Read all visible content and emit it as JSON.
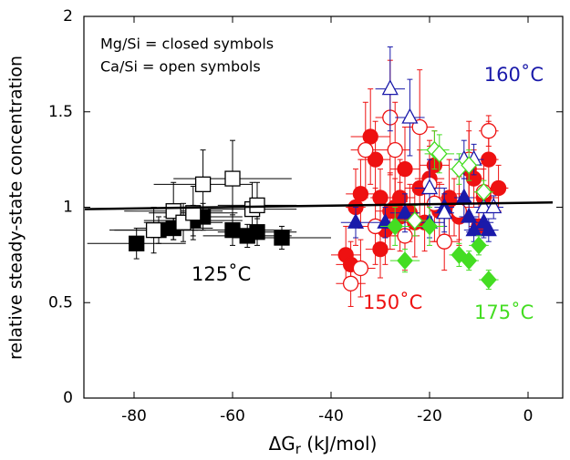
{
  "chart_data": {
    "type": "scatter",
    "ylabel": "relative steady-state concentration",
    "xlabel": {
      "main": "ΔG",
      "sub": "r",
      "rest": " (kJ/mol)"
    },
    "xlim": [
      -90,
      5
    ],
    "ylim": [
      0,
      2
    ],
    "xticks": [
      -80,
      -60,
      -40,
      -20,
      0
    ],
    "yticks": [
      0,
      0.5,
      1,
      1.5,
      2
    ],
    "fit_line": {
      "color": "#000000",
      "x": [
        -90,
        5
      ],
      "y": [
        0.99,
        1.025
      ]
    },
    "annotations": [
      {
        "text": "Mg/Si = closed symbols",
        "color": "#000000"
      },
      {
        "text": "Ca/Si = open symbols",
        "color": "#000000"
      },
      {
        "text": "160˚C",
        "color": "#1a1aaa"
      },
      {
        "text": "125˚C",
        "color": "#000000"
      },
      {
        "text": "150˚C",
        "color": "#ee1111"
      },
      {
        "text": "175˚C",
        "color": "#44dd22"
      }
    ],
    "series": [
      {
        "color": "#000000",
        "marker": "square",
        "filled": true,
        "x": [
          -79.5,
          -75,
          -72,
          -68,
          -66,
          -60,
          -57,
          -55,
          -50
        ],
        "values": [
          0.81,
          0.88,
          0.89,
          0.93,
          0.95,
          0.88,
          0.85,
          0.87,
          0.84
        ],
        "xerr": [
          10,
          9,
          8,
          10,
          8,
          12,
          9,
          8,
          10
        ],
        "yerr": [
          0.08,
          0.07,
          0.06,
          0.08,
          0.07,
          0.08,
          0.06,
          0.07,
          0.06
        ]
      },
      {
        "color": "#000000",
        "marker": "square",
        "filled": false,
        "x": [
          -76,
          -72,
          -70,
          -68,
          -66,
          -60,
          -56,
          -55
        ],
        "values": [
          0.88,
          0.98,
          0.92,
          0.97,
          1.12,
          1.15,
          0.99,
          1.01
        ],
        "xerr": [
          9,
          10,
          8,
          9,
          10,
          12,
          9,
          8
        ],
        "yerr": [
          0.12,
          0.15,
          0.1,
          0.14,
          0.18,
          0.2,
          0.14,
          0.12
        ]
      },
      {
        "color": "#ee1111",
        "marker": "circle",
        "filled": true,
        "x": [
          -37,
          -36,
          -35,
          -34,
          -32,
          -31,
          -30,
          -29,
          -28,
          -27,
          -26,
          -25,
          -24,
          -23,
          -22,
          -21,
          -20,
          -19,
          -18,
          -16,
          -15,
          -14,
          -12,
          -11,
          -10,
          -9,
          -8,
          -6,
          -30,
          -26
        ],
        "values": [
          0.75,
          0.7,
          1.0,
          1.07,
          1.37,
          1.25,
          1.05,
          0.88,
          0.98,
          1.0,
          1.05,
          1.2,
          0.97,
          0.92,
          1.1,
          0.92,
          1.15,
          1.22,
          0.98,
          1.05,
          1.0,
          0.95,
          1.2,
          1.15,
          0.9,
          1.05,
          1.25,
          1.1,
          0.78,
          0.95
        ],
        "xerr": [
          3,
          3,
          2,
          3,
          4,
          3,
          2,
          3,
          3,
          2,
          3,
          3,
          2,
          3,
          3,
          2,
          3,
          3,
          2,
          3,
          3,
          2,
          3,
          2,
          2,
          3,
          2,
          2,
          3,
          3
        ],
        "yerr": [
          0.15,
          0.12,
          0.2,
          0.18,
          0.25,
          0.2,
          0.15,
          0.18,
          0.2,
          0.15,
          0.2,
          0.22,
          0.15,
          0.18,
          0.2,
          0.15,
          0.2,
          0.18,
          0.15,
          0.2,
          0.15,
          0.12,
          0.2,
          0.15,
          0.12,
          0.15,
          0.2,
          0.12,
          0.15,
          0.18
        ]
      },
      {
        "color": "#ee1111",
        "marker": "circle",
        "filled": false,
        "x": [
          -36,
          -34,
          -33,
          -31,
          -28,
          -27,
          -25,
          -22,
          -20,
          -17,
          -14,
          -12,
          -9,
          -8,
          -19
        ],
        "values": [
          0.6,
          0.68,
          1.3,
          0.9,
          1.47,
          1.3,
          0.85,
          1.42,
          1.12,
          0.82,
          0.98,
          1.25,
          1.08,
          1.4,
          1.02
        ],
        "xerr": [
          3,
          3,
          3,
          3,
          3,
          3,
          3,
          3,
          3,
          3,
          2,
          2,
          2,
          2,
          3
        ],
        "yerr": [
          0.12,
          0.15,
          0.25,
          0.2,
          0.3,
          0.25,
          0.18,
          0.3,
          0.2,
          0.15,
          0.18,
          0.2,
          0.15,
          0.08,
          0.2
        ]
      },
      {
        "color": "#1a1aaa",
        "marker": "triangle",
        "filled": true,
        "x": [
          -35,
          -29,
          -25,
          -20,
          -17,
          -13,
          -12,
          -11,
          -9,
          -8
        ],
        "values": [
          0.92,
          0.92,
          0.97,
          0.92,
          1.0,
          1.05,
          0.95,
          0.88,
          0.92,
          0.88
        ],
        "xerr": [
          3,
          3,
          3,
          3,
          2,
          2,
          2,
          2,
          2,
          2
        ],
        "yerr": [
          0.08,
          0.08,
          0.1,
          0.08,
          0.1,
          0.1,
          0.08,
          0.06,
          0.08,
          0.06
        ]
      },
      {
        "color": "#1a1aaa",
        "marker": "triangle",
        "filled": false,
        "x": [
          -28,
          -24,
          -20,
          -17,
          -13,
          -11,
          -9,
          -7
        ],
        "values": [
          1.62,
          1.47,
          1.1,
          0.97,
          1.25,
          1.25,
          1.0,
          1.0
        ],
        "xerr": [
          3,
          3,
          3,
          2,
          2,
          2,
          2,
          2
        ],
        "yerr": [
          0.22,
          0.2,
          0.15,
          0.1,
          0.1,
          0.08,
          0.08,
          0.06
        ]
      },
      {
        "color": "#44dd22",
        "marker": "diamond",
        "filled": true,
        "x": [
          -27,
          -20,
          -25,
          -14,
          -12,
          -10,
          -8
        ],
        "values": [
          0.9,
          0.9,
          0.72,
          0.75,
          0.72,
          0.8,
          0.62
        ],
        "xerr": [
          3,
          3,
          3,
          2,
          2,
          2,
          2
        ],
        "yerr": [
          0.1,
          0.1,
          0.06,
          0.06,
          0.05,
          0.05,
          0.05
        ]
      },
      {
        "color": "#44dd22",
        "marker": "diamond",
        "filled": false,
        "x": [
          -19,
          -18,
          -23,
          -14,
          -12,
          -9
        ],
        "values": [
          1.3,
          1.28,
          0.93,
          1.2,
          1.22,
          1.08
        ],
        "xerr": [
          3,
          3,
          3,
          2,
          2,
          2
        ],
        "yerr": [
          0.1,
          0.1,
          0.08,
          0.08,
          0.08,
          0.06
        ]
      }
    ]
  }
}
